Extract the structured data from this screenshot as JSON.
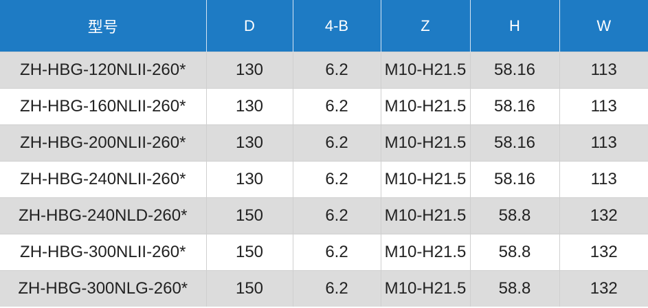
{
  "table": {
    "headers": [
      "型号",
      "D",
      "4-B",
      "Z",
      "H",
      "W"
    ],
    "rows": [
      [
        "ZH-HBG-120NLII-260*",
        "130",
        "6.2",
        "M10-H21.5",
        "58.16",
        "113"
      ],
      [
        "ZH-HBG-160NLII-260*",
        "130",
        "6.2",
        "M10-H21.5",
        "58.16",
        "113"
      ],
      [
        "ZH-HBG-200NLII-260*",
        "130",
        "6.2",
        "M10-H21.5",
        "58.16",
        "113"
      ],
      [
        "ZH-HBG-240NLII-260*",
        "130",
        "6.2",
        "M10-H21.5",
        "58.16",
        "113"
      ],
      [
        "ZH-HBG-240NLD-260*",
        "150",
        "6.2",
        "M10-H21.5",
        "58.8",
        "132"
      ],
      [
        "ZH-HBG-300NLII-260*",
        "150",
        "6.2",
        "M10-H21.5",
        "58.8",
        "132"
      ],
      [
        "ZH-HBG-300NLG-260*",
        "150",
        "6.2",
        "M10-H21.5",
        "58.8",
        "132"
      ]
    ]
  },
  "colors": {
    "header_bg": "#1e7bc4",
    "header_text": "#ffffff",
    "stripe_bg": "#dcdcdc",
    "row_bg": "#ffffff"
  }
}
